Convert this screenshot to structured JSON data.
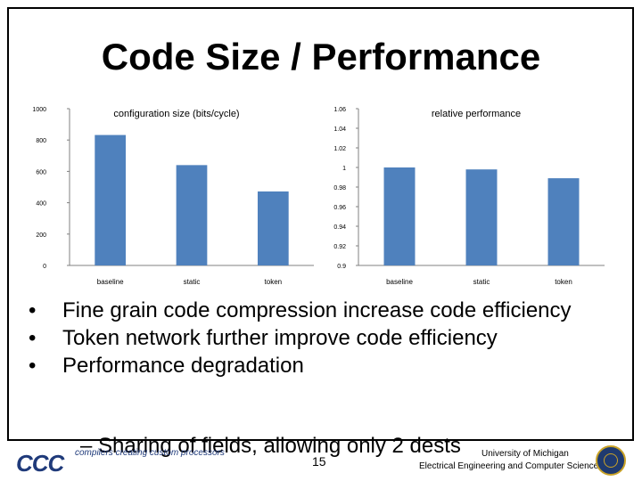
{
  "slide": {
    "title": "Code Size / Performance",
    "bullets": [
      "Fine grain code compression increase code efficiency",
      "Token network further improve code efficiency",
      "Performance degradation"
    ],
    "sub_bullet": "– Sharing of fields, allowing only 2 dests",
    "page_number": "15",
    "footer": {
      "logo": "CCC",
      "tagline": "compilers creating custom processors",
      "university": "University of Michigan",
      "department": "Electrical Engineering and Computer Science"
    }
  },
  "colors": {
    "bar": "#4f81bd",
    "axis": "#808080",
    "text": "#000000",
    "logo": "#1f3a7a"
  },
  "chart_data": [
    {
      "type": "bar",
      "title": "configuration size (bits/cycle)",
      "categories": [
        "baseline",
        "static",
        "token"
      ],
      "values": [
        832,
        640,
        472
      ],
      "ylim": [
        0,
        1000
      ],
      "yticks": [
        0,
        200,
        400,
        600,
        800,
        1000
      ],
      "ytick_labels": [
        "0",
        "200",
        "400",
        "600",
        "800",
        "1000"
      ],
      "grid": false
    },
    {
      "type": "bar",
      "title": "relative performance",
      "categories": [
        "baseline",
        "static",
        "token"
      ],
      "values": [
        1.0,
        0.998,
        0.989
      ],
      "ylim": [
        0.9,
        1.06
      ],
      "yticks": [
        0.9,
        0.92,
        0.94,
        0.96,
        0.98,
        1.0,
        1.02,
        1.04,
        1.06
      ],
      "ytick_labels": [
        "0.9",
        "0.92",
        "0.94",
        "0.96",
        "0.98",
        "1",
        "1.02",
        "1.04",
        "1.06"
      ],
      "grid": false
    }
  ]
}
